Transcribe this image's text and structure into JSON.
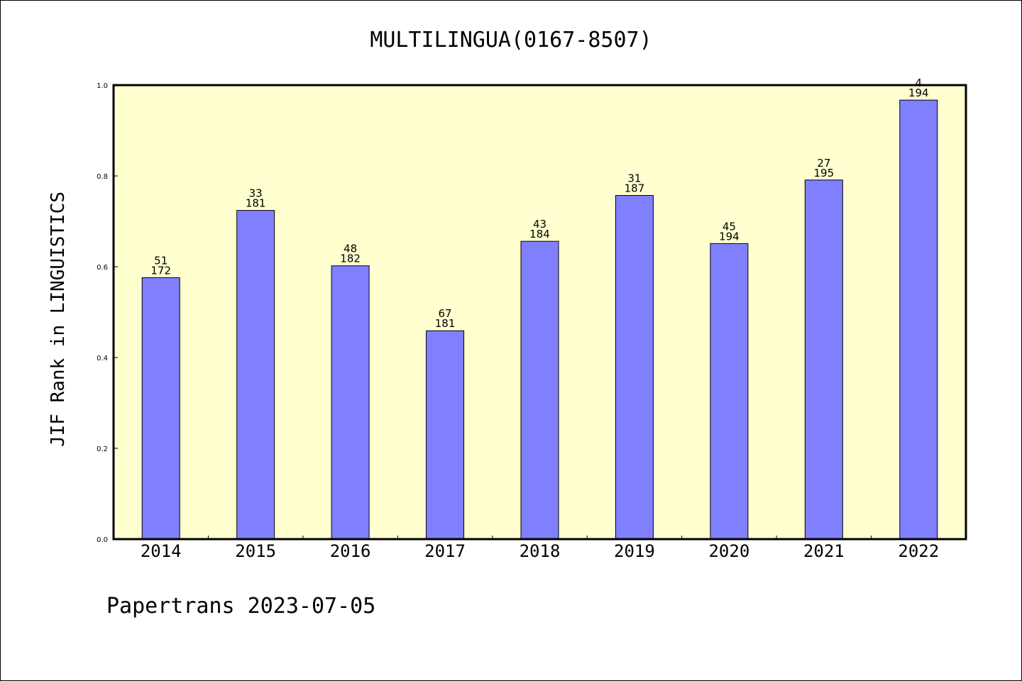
{
  "chart_data": {
    "type": "bar",
    "title": "MULTILINGUA(0167-8507)",
    "ylabel": "JIF Rank in LINGUISTICS",
    "xlabel": "",
    "categories": [
      "2014",
      "2015",
      "2016",
      "2017",
      "2018",
      "2019",
      "2020",
      "2021",
      "2022"
    ],
    "values": [
      0.576,
      0.724,
      0.602,
      0.459,
      0.656,
      0.757,
      0.651,
      0.791,
      0.967
    ],
    "ranks": [
      "51",
      "33",
      "48",
      "67",
      "43",
      "31",
      "45",
      "27",
      "4"
    ],
    "totals": [
      "172",
      "181",
      "182",
      "181",
      "184",
      "187",
      "194",
      "195",
      "194"
    ],
    "ylim": [
      0,
      1.0
    ],
    "yticks": [
      "0.0",
      "0.2",
      "0.4",
      "0.6",
      "0.8",
      "1.0"
    ],
    "grid": false,
    "colors": {
      "bar": "#8080ff",
      "plot_bg": "#ffffd0",
      "axis": "#000000"
    }
  },
  "footer": "Papertrans 2023-07-05"
}
